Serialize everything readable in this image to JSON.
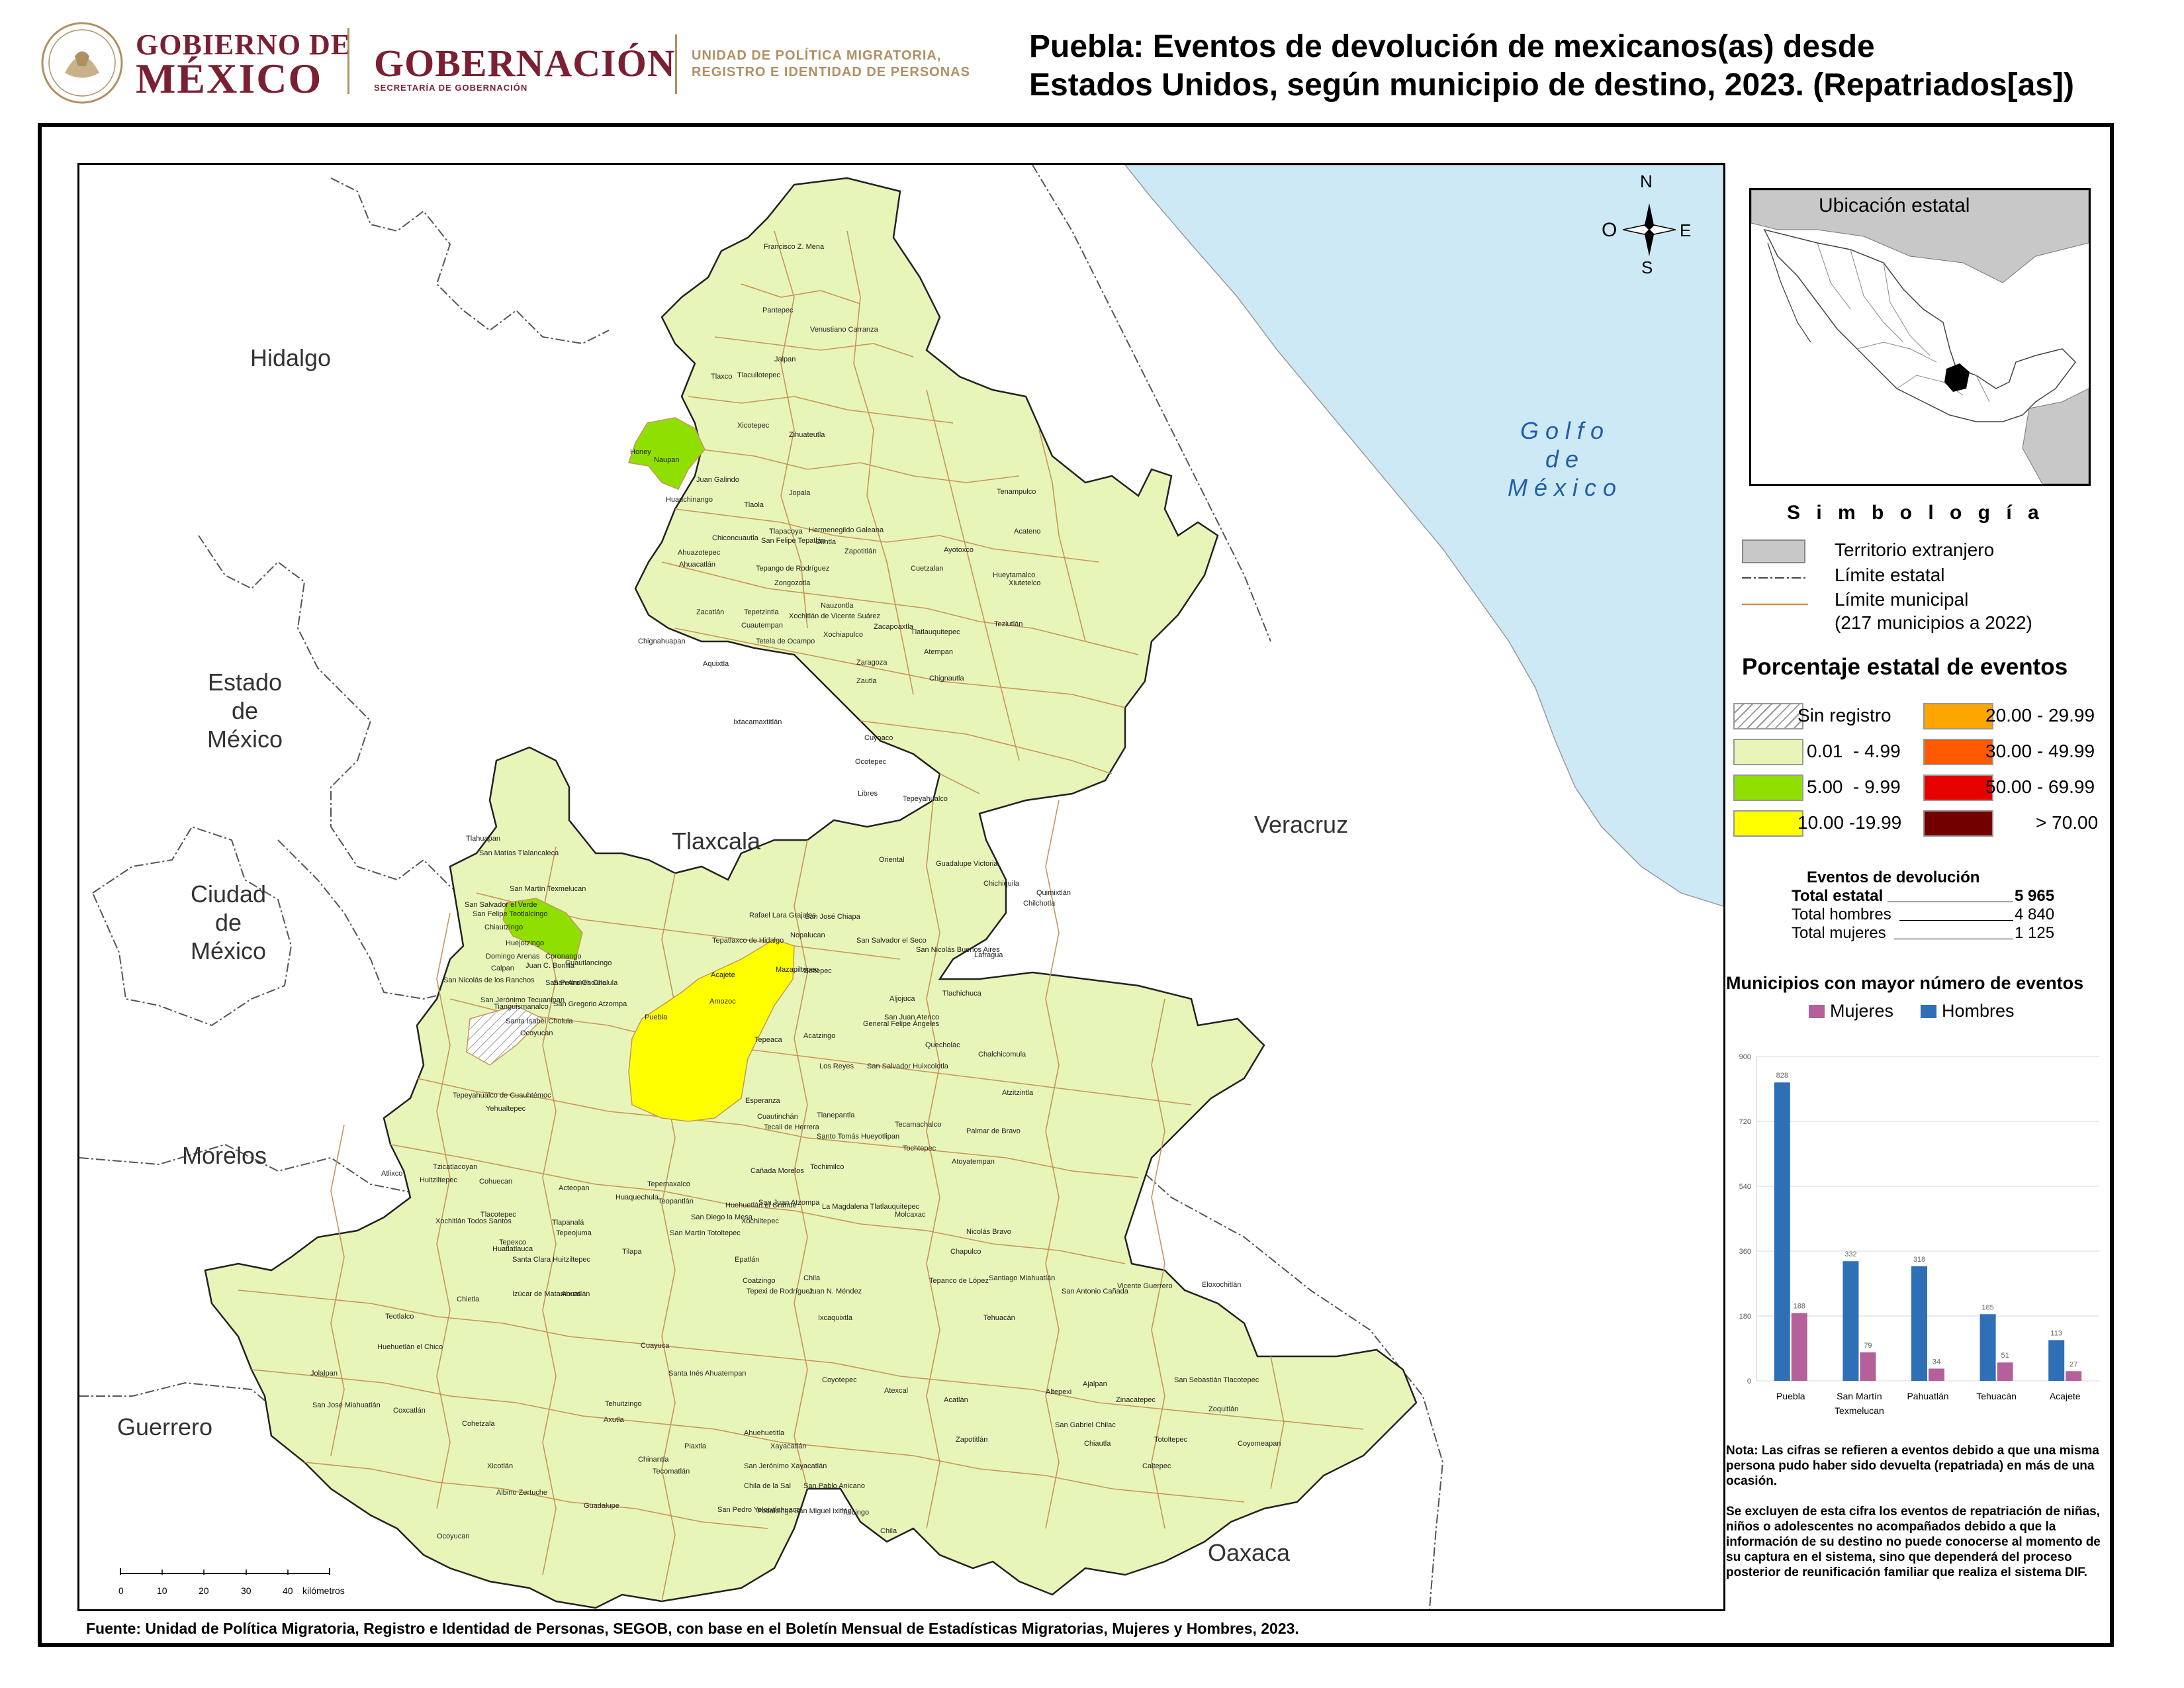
{
  "header": {
    "gobierno_line1": "GOBIERNO DE",
    "gobierno_line2": "MÉXICO",
    "gobernacion": "GOBERNACIÓN",
    "secretaria": "SECRETARÍA DE GOBERNACIÓN",
    "unidad_line1": "UNIDAD DE POLÍTICA MIGRATORIA,",
    "unidad_line2": "REGISTRO E IDENTIDAD DE PERSONAS",
    "title_line1": "Puebla: Eventos de devolución de mexicanos(as) desde",
    "title_line2": "Estados Unidos, según municipio de destino, 2023. (Repatriados[as])"
  },
  "map": {
    "states": {
      "hidalgo": "Hidalgo",
      "edomex_1": "Estado",
      "edomex_2": "de",
      "edomex_3": "México",
      "cdmx_1": "Ciudad",
      "cdmx_2": "de",
      "cdmx_3": "México",
      "morelos": "Morelos",
      "guerrero": "Guerrero",
      "tlaxcala": "Tlaxcala",
      "veracruz": "Veracruz",
      "oaxaca": "Oaxaca",
      "golfo_1": "G o l f o",
      "golfo_2": "d e",
      "golfo_3": "M é x i c o"
    },
    "compass": {
      "n": "N",
      "s": "S",
      "e": "E",
      "o": "O"
    },
    "scale": {
      "ticks": [
        "0",
        "10",
        "20",
        "30",
        "40"
      ],
      "unit": "kilómetros"
    },
    "colors": {
      "low": "#e8f5b8",
      "mid": "#8fe000",
      "high": "#ffff00",
      "water": "#cde9f6",
      "municipal_border": "#c8955a"
    },
    "highlighted": {
      "puebla": "Puebla",
      "san_martin": "San Martín Texmelucan",
      "pahuatlan": "Pahuatlán"
    },
    "municipalities": [
      "Francisco Z. Mena",
      "Pantepec",
      "Venustiano Carranza",
      "Jalpan",
      "Tlaxco",
      "Tlacuilotepec",
      "Xicotepec",
      "Zihuateutla",
      "Honey",
      "Naupan",
      "Juan Galindo",
      "Huauchinango",
      "Jopala",
      "Tlaola",
      "Tenampulco",
      "Chiconcuautla",
      "Tepango de Rodríguez",
      "Tlapacoya",
      "Hermenegildo Galeana",
      "San Felipe Tepatlán",
      "Olintla",
      "Ahuacatlán",
      "Zongozotla",
      "Cuetzalan",
      "Ayotoxco",
      "Hueytamalco",
      "Acateno",
      "Ahuazotepec",
      "Zacatlán",
      "Tepetzintla",
      "Xochitlán de Vicente Suárez",
      "Nauzontla",
      "Xiutetelco",
      "Teziutlán",
      "Chignahuapan",
      "Aquixtla",
      "Tetela de Ocampo",
      "Cuautempan",
      "Zapotitlán",
      "Xochiapulco",
      "Zacapoaxtla",
      "Tlatlauquitepec",
      "Atempan",
      "Zaragoza",
      "Zautla",
      "Chignautla",
      "Ixtacamaxtitlán",
      "Cuyoaco",
      "Ocotepec",
      "Libres",
      "Tepeyahualco",
      "Oriental",
      "Guadalupe Victoria",
      "Chichiquila",
      "Quimixtlán",
      "Chilchotla",
      "Tlahuapan",
      "San Matías Tlalancaleca",
      "San Martín Texmelucan",
      "San Salvador el Verde",
      "San Felipe Teotlalcingo",
      "Chiautzingo",
      "Huejotzingo",
      "Domingo Arenas",
      "Calpan",
      "Juan C. Bonilla",
      "Coronango",
      "Cuautlancingo",
      "San Pedro Cholula",
      "San Andrés Cholula",
      "San Nicolás de los Ranchos",
      "Tianguismanalco",
      "San Jerónimo Tecuanipan",
      "Santa Isabel Cholula",
      "San Gregorio Atzompa",
      "Ocoyucan",
      "Puebla",
      "Tepatlaxco de Hidalgo",
      "Acajete",
      "Amozoc",
      "Rafael Lara Grajales",
      "San José Chiapa",
      "Nopalucan",
      "Mazapiltepec",
      "Soltepec",
      "San Salvador el Seco",
      "San Nicolás Buenos Aires",
      "Lafragua",
      "Tlachichuca",
      "Aljojuca",
      "San Juan Atenco",
      "General Felipe Ángeles",
      "Tepeaca",
      "Acatzingo",
      "Los Reyes",
      "San Salvador Huixcolotla",
      "Quecholac",
      "Chalchicomula",
      "Atzitzintla",
      "Esperanza",
      "Cuautinchán",
      "Tecali de Herrera",
      "Tlanepantla",
      "Santo Tomás Hueyotlipan",
      "Tecamachalco",
      "Palmar de Bravo",
      "Tochtepec",
      "Atoyatempan",
      "Tepeyahualco de Cuauhtémoc",
      "Yehualtepec",
      "Cañada Morelos",
      "Tochimilco",
      "Atlixco",
      "Tzicatlacoyan",
      "Huitziltepec",
      "Cohuecan",
      "Acteopan",
      "Tepemaxalco",
      "Huaquechula",
      "San Diego la Mesa",
      "Huehuetlán el Grande",
      "Teopantlán",
      "San Juan Atzompa",
      "La Magdalena Tlatlauquitepec",
      "Molcaxac",
      "Xochitlán Todos Santos",
      "Tlacotepec",
      "Tepexco",
      "Tlapanalá",
      "Tepeojuma",
      "San Martín Totoltepec",
      "Xochiltepec",
      "Huatlatlauca",
      "Santa Clara Huitziltepec",
      "Tilapa",
      "Epatlán",
      "Coatzingo",
      "Chila",
      "Nicolás Bravo",
      "Chapulco",
      "Tepanco de López",
      "Santiago Miahuatlán",
      "Chietla",
      "Izúcar de Matamoros",
      "Ahuatlán",
      "Tepexi de Rodríguez",
      "Juan N. Méndez",
      "Ixcaquixtla",
      "Tehuacán",
      "San Antonio Cañada",
      "Vicente Guerrero",
      "Eloxochitlán",
      "Teotlalco",
      "Huehuetlán el Chico",
      "Cuayuca",
      "Santa Inés Ahuatempan",
      "Coyotepec",
      "Atexcal",
      "Ajalpan",
      "San Sebastián Tlacotepec",
      "Altepexi",
      "Zinacatepec",
      "San Gabriel Chilac",
      "Zoquitlán",
      "Jolalpan",
      "Tehuitzingo",
      "Zapotitlán",
      "Coyomeapan",
      "Chiautla",
      "Acatlán",
      "Totoltepec",
      "Caltepec",
      "San José Miahuatlán",
      "Coxcatlán",
      "Cohetzala",
      "Axutla",
      "Chinantla",
      "Piaxtla",
      "Ahuehuetitla",
      "Xayacatlán",
      "San Jerónimo Xayacatlán",
      "Chila de la Sal",
      "San Pablo Anicano",
      "Xicotlán",
      "Tecomatlán",
      "Albino Zertuche",
      "Guadalupe",
      "San Pedro Yeloixtlahuaca",
      "Petlalcingo",
      "San Miguel Ixitlán",
      "Tulcingo",
      "Chila",
      "Ocoyucan"
    ]
  },
  "inset": {
    "title": "Ubicación estatal"
  },
  "legend": {
    "title": "S i m b o l o g í a",
    "territorio": "Territorio extranjero",
    "limite_estatal": "Límite estatal",
    "limite_municipal": "Límite municipal",
    "municipios_note": "(217 municipios a 2022)",
    "pct_title": "Porcentaje estatal de eventos",
    "classes": [
      {
        "label": "Sin registro",
        "color": "hatch"
      },
      {
        "label": "0.01  - 4.99",
        "color": "#e8f5b8"
      },
      {
        "label": "5.00  - 9.99",
        "color": "#8fe000"
      },
      {
        "label": "10.00 -19.99",
        "color": "#ffff00"
      },
      {
        "label": "20.00 - 29.99",
        "color": "#ffa500"
      },
      {
        "label": "30.00 - 49.99",
        "color": "#ff5a00"
      },
      {
        "label": "50.00 - 69.99",
        "color": "#e60000"
      },
      {
        "label": "> 70.00",
        "color": "#730000"
      }
    ]
  },
  "devoluciones": {
    "title": "Eventos de devolución",
    "total_estatal_label": "Total estatal",
    "total_estatal": "5 965",
    "total_hombres_label": "Total hombres",
    "total_hombres": "4 840",
    "total_mujeres_label": "Total mujeres",
    "total_mujeres": "1 125"
  },
  "chart_data": {
    "type": "bar",
    "title": "Municipios con mayor número de eventos",
    "categories": [
      "Puebla",
      "San Martín Texmelucan",
      "Pahuatlán",
      "Tehuacán",
      "Acajete"
    ],
    "category_lines": [
      [
        "Puebla"
      ],
      [
        "San Martín",
        "Texmelucan"
      ],
      [
        "Pahuatlán"
      ],
      [
        "Tehuacán"
      ],
      [
        "Acajete"
      ]
    ],
    "series": [
      {
        "name": "Hombres",
        "values": [
          828,
          332,
          318,
          185,
          113
        ],
        "color": "#2e6fb5"
      },
      {
        "name": "Mujeres",
        "values": [
          188,
          79,
          34,
          51,
          27
        ],
        "color": "#b5609a"
      }
    ],
    "legend_order": [
      "Mujeres",
      "Hombres"
    ],
    "yticks": [
      0,
      180,
      360,
      540,
      720,
      900
    ],
    "ylim": [
      0,
      900
    ],
    "legend_placement": "top"
  },
  "nota": {
    "p1": "Nota: Las cifras se refieren a eventos debido a que una misma persona pudo haber sido devuelta (repatriada) en más de una ocasión.",
    "p2": "Se excluyen de esta cifra los eventos de repatriación de niñas, niños o adolescentes no acompañados debido a que la información de su destino no puede conocerse al momento de su captura en el sistema, sino que dependerá del proceso posterior de reunificación familiar que realiza el sistema DIF."
  },
  "source": "Fuente: Unidad de Política Migratoria, Registro e Identidad de Personas, SEGOB, con base en el Boletín Mensual de Estadísticas Migratorias, Mujeres y Hombres, 2023."
}
